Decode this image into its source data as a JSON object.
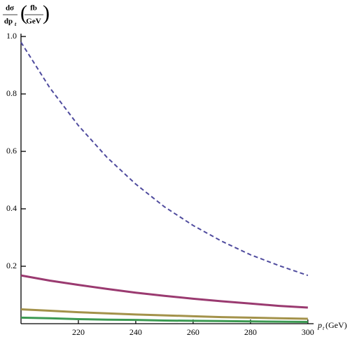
{
  "chart_data": {
    "type": "line",
    "y_label": {
      "numerator": "dσ",
      "denominator": "dp",
      "subscript": "t",
      "unit_numerator": "fb",
      "unit_denominator": "GeV"
    },
    "x_label": {
      "symbol": "p",
      "subscript": "t",
      "unit": "(GeV)"
    },
    "x": [
      200,
      210,
      220,
      230,
      240,
      250,
      260,
      270,
      280,
      290,
      300
    ],
    "series": [
      {
        "color": "#4f4b9e",
        "dashed": true,
        "values": [
          0.98,
          0.822,
          0.69,
          0.579,
          0.486,
          0.407,
          0.342,
          0.287,
          0.24,
          0.202,
          0.168
        ]
      },
      {
        "color": "#9a3a70",
        "dashed": false,
        "values": [
          0.168,
          0.15,
          0.135,
          0.121,
          0.108,
          0.097,
          0.087,
          0.078,
          0.07,
          0.062,
          0.056
        ]
      },
      {
        "color": "#a3924a",
        "dashed": false,
        "values": [
          0.05,
          0.045,
          0.04,
          0.036,
          0.032,
          0.029,
          0.026,
          0.023,
          0.021,
          0.019,
          0.017
        ]
      },
      {
        "color": "#3c9a52",
        "dashed": false,
        "values": [
          0.021,
          0.019,
          0.016,
          0.014,
          0.013,
          0.011,
          0.01,
          0.009,
          0.008,
          0.007,
          0.006
        ]
      }
    ],
    "xlim": [
      200,
      302
    ],
    "ylim": [
      0,
      1.01
    ],
    "xticks": [
      220,
      240,
      260,
      280,
      300
    ],
    "yticks": [
      0.2,
      0.4,
      0.6,
      0.8,
      {
        "value": 1,
        "label": "1.0"
      }
    ]
  }
}
